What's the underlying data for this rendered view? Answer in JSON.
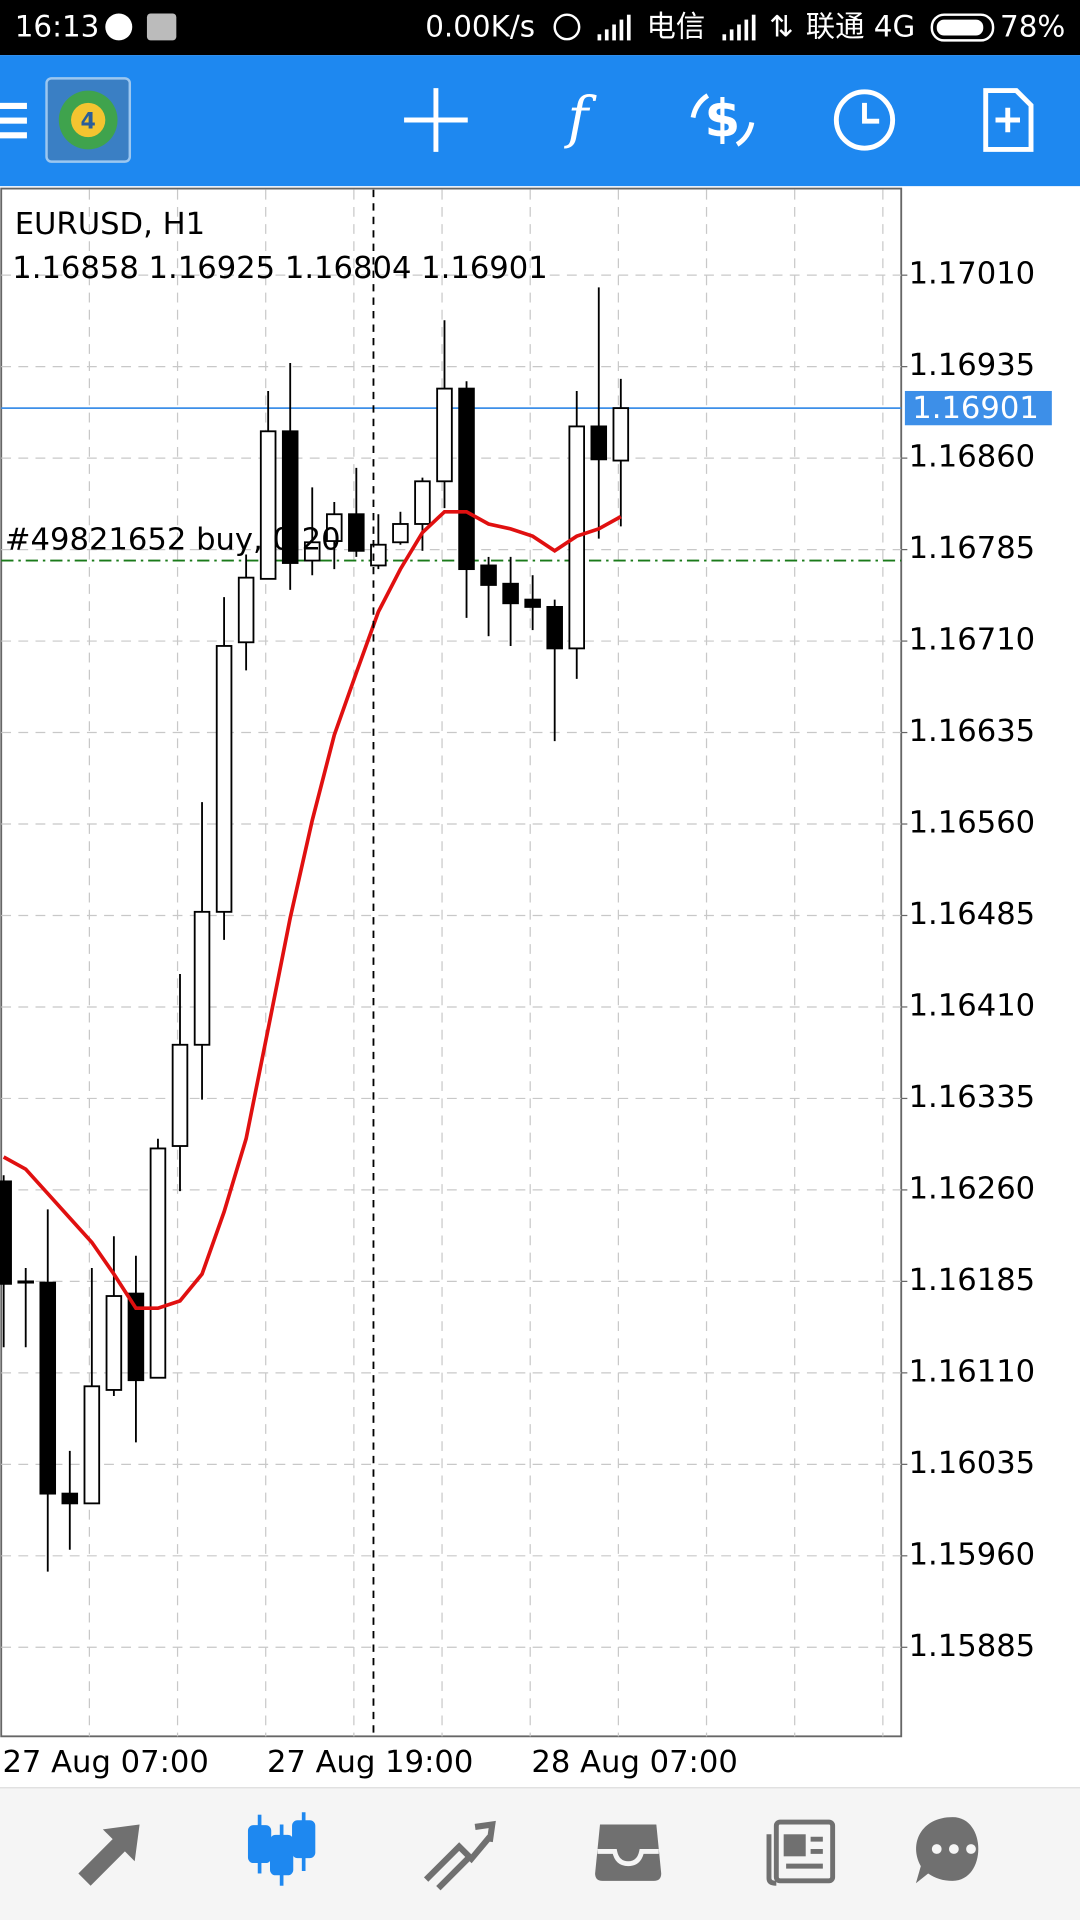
{
  "status_bar": {
    "time": "16:13",
    "speed": "0.00K/s",
    "carrier1": "电信",
    "carrier2": "联通 4G",
    "battery": "78%"
  },
  "chart_data": {
    "type": "candlestick",
    "title": "EURUSD, H1",
    "ohlc_label": "1.16858 1.16925 1.16804 1.16901",
    "categories": [
      "27 Aug 07:00",
      null,
      null,
      null,
      null,
      null,
      null,
      null,
      null,
      null,
      null,
      null,
      "27 Aug 19:00",
      null,
      null,
      null,
      null,
      null,
      null,
      null,
      null,
      null,
      null,
      null,
      "28 Aug 07:00",
      null,
      null,
      null,
      null
    ],
    "open": [
      1.16267,
      1.16185,
      1.16184,
      1.16011,
      1.16003,
      1.16096,
      1.16175,
      1.16106,
      1.16296,
      1.16379,
      1.16488,
      1.16709,
      1.16761,
      1.16882,
      1.16776,
      1.16792,
      1.16814,
      1.16772,
      1.16791,
      1.16806,
      1.16841,
      1.16917,
      1.16772,
      1.16757,
      1.16744,
      1.16738,
      1.16704,
      1.16886,
      1.16858
    ],
    "high": [
      1.16272,
      1.16196,
      1.16244,
      1.16046,
      1.16196,
      1.16222,
      1.16206,
      1.16302,
      1.16437,
      1.16578,
      1.16746,
      1.16781,
      1.16915,
      1.16938,
      1.16836,
      1.16824,
      1.16852,
      1.16814,
      1.16816,
      1.16844,
      1.16973,
      1.16923,
      1.16779,
      1.16779,
      1.16764,
      1.16744,
      1.16915,
      1.17,
      1.16925
    ],
    "low": [
      1.16131,
      1.16131,
      1.15947,
      1.15965,
      1.16003,
      1.16091,
      1.16053,
      1.16106,
      1.16259,
      1.16334,
      1.16465,
      1.16686,
      1.16761,
      1.16752,
      1.16764,
      1.16769,
      1.16779,
      1.16769,
      1.16789,
      1.16784,
      1.16819,
      1.16729,
      1.16714,
      1.16706,
      1.16719,
      1.16628,
      1.16679,
      1.16794,
      1.16804
    ],
    "close": [
      1.16183,
      1.16185,
      1.16011,
      1.16003,
      1.16099,
      1.16173,
      1.16104,
      1.16294,
      1.16379,
      1.16488,
      1.16706,
      1.16762,
      1.16882,
      1.16774,
      1.16791,
      1.16814,
      1.16784,
      1.16789,
      1.16806,
      1.16841,
      1.16917,
      1.16769,
      1.16756,
      1.16741,
      1.16738,
      1.16704,
      1.16886,
      1.16859,
      1.16901
    ],
    "color_up": "#ffffff",
    "color_down": "#000000",
    "ma": {
      "color": "#e01010",
      "values": [
        1.16287,
        1.16277,
        1.16257,
        1.16237,
        1.16217,
        1.16191,
        1.16163,
        1.16163,
        1.16169,
        1.16191,
        1.16242,
        1.16302,
        1.16392,
        1.16483,
        1.16563,
        1.16633,
        1.16684,
        1.16734,
        1.16769,
        1.16799,
        1.16816,
        1.16816,
        1.16806,
        1.16802,
        1.16796,
        1.16784,
        1.16796,
        1.16802,
        1.16812
      ]
    },
    "last_price": 1.16901,
    "last_price_color": "#3d8fe8",
    "order_line": {
      "label": "#49821652 buy, 0.20",
      "value": 1.16776,
      "color": "#1a7a1a"
    },
    "ylim": [
      1.15812,
      1.1708
    ],
    "yticks": [
      {
        "value": 1.1701,
        "label": "1.17010"
      },
      1.16935,
      {
        "value": 1.1686,
        "label": "1.16860"
      },
      1.16785,
      {
        "value": 1.1671,
        "label": "1.16710"
      },
      1.16635,
      {
        "value": 1.1656,
        "label": "1.16560"
      },
      1.16485,
      {
        "value": 1.1641,
        "label": "1.16410"
      },
      1.16335,
      {
        "value": 1.1626,
        "label": "1.16260"
      },
      1.16185,
      {
        "value": 1.1611,
        "label": "1.16110"
      },
      1.16035,
      {
        "value": 1.1596,
        "label": "1.15960"
      },
      1.15885
    ],
    "grid": true
  }
}
